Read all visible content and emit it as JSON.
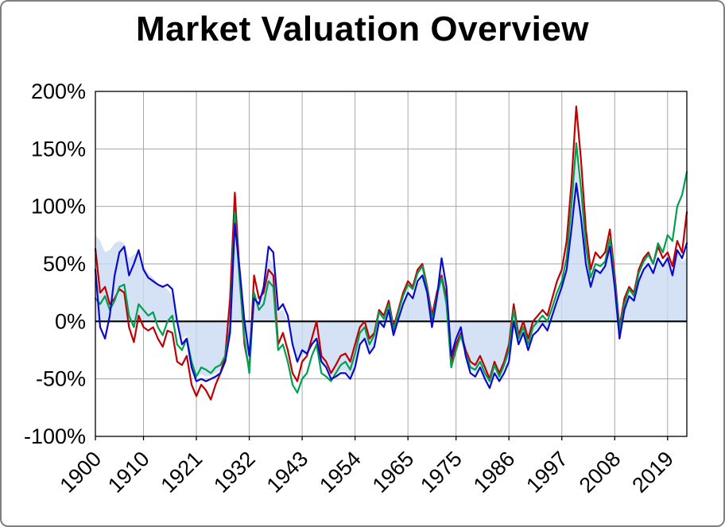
{
  "title": "Market Valuation Overview",
  "chart_data": {
    "type": "line",
    "title": "Market Valuation Overview",
    "xlabel": "",
    "ylabel": "",
    "legend": "none",
    "grid": true,
    "xlim": [
      1900,
      2023
    ],
    "ylim": [
      -100,
      200
    ],
    "x_ticks": [
      1900,
      1910,
      1921,
      1932,
      1943,
      1954,
      1965,
      1975,
      1986,
      1997,
      2008,
      2019
    ],
    "x_tick_labels": [
      "1900",
      "1910",
      "1921",
      "1932",
      "1943",
      "1954",
      "1965",
      "1975",
      "1986",
      "1997",
      "2008",
      "2019"
    ],
    "y_ticks": [
      -100,
      -50,
      0,
      50,
      100,
      150,
      200
    ],
    "y_tick_labels": [
      "-100%",
      "-50%",
      "0%",
      "50%",
      "100%",
      "150%",
      "200%"
    ],
    "colors": {
      "red": "#c00000",
      "green": "#00a050",
      "blue": "#0a0ac8",
      "band_fill": "#cbd9f2",
      "grid": "#a6a6a6",
      "axis": "#000000"
    },
    "x_start": 1900,
    "x_step": 1,
    "band": {
      "name": "shaded-band",
      "values": [
        75,
        70,
        60,
        62,
        68,
        70,
        68,
        55,
        58,
        60,
        48,
        42,
        38,
        33,
        30,
        28,
        22,
        0,
        -15,
        -12,
        -35,
        -48,
        -46,
        -48,
        -47,
        -45,
        -43,
        -33,
        -8,
        80,
        42,
        0,
        -32,
        18,
        14,
        28,
        55,
        50,
        8,
        10,
        0,
        -22,
        -38,
        -28,
        -30,
        -22,
        -15,
        -35,
        -40,
        -48,
        -46,
        -43,
        -43,
        -48,
        -38,
        -18,
        -14,
        -26,
        -20,
        0,
        -5,
        8,
        -12,
        0,
        13,
        23,
        18,
        32,
        38,
        22,
        -6,
        18,
        45,
        25,
        -32,
        -18,
        -8,
        -28,
        -42,
        -45,
        -38,
        -48,
        -55,
        -42,
        -50,
        -42,
        -32,
        -2,
        -18,
        -8,
        -24,
        -10,
        -6,
        0,
        -6,
        6,
        20,
        32,
        48,
        85,
        150,
        95,
        52,
        32,
        46,
        44,
        50,
        68,
        32,
        -12,
        12,
        24,
        20,
        36,
        46,
        52,
        44,
        56,
        50,
        55,
        42,
        60,
        52,
        55
      ]
    },
    "series": [
      {
        "name": "red-series",
        "color_key": "red",
        "values": [
          63,
          25,
          30,
          15,
          20,
          28,
          25,
          -5,
          -18,
          5,
          -5,
          -8,
          -5,
          -15,
          -22,
          -8,
          -10,
          -35,
          -38,
          -30,
          -55,
          -65,
          -55,
          -60,
          -68,
          -55,
          -45,
          -30,
          20,
          112,
          40,
          -20,
          -42,
          40,
          20,
          25,
          45,
          40,
          -20,
          -10,
          -25,
          -45,
          -52,
          -35,
          -30,
          -15,
          0,
          -30,
          -35,
          -45,
          -38,
          -30,
          -28,
          -35,
          -20,
          -5,
          0,
          -15,
          -10,
          10,
          5,
          18,
          -5,
          10,
          25,
          35,
          30,
          45,
          50,
          30,
          5,
          25,
          40,
          20,
          -35,
          -20,
          -10,
          -25,
          -35,
          -38,
          -30,
          -40,
          -50,
          -35,
          -45,
          -35,
          -20,
          15,
          -12,
          0,
          -15,
          0,
          5,
          10,
          5,
          20,
          35,
          45,
          70,
          120,
          187,
          140,
          80,
          45,
          60,
          55,
          60,
          80,
          40,
          -5,
          20,
          30,
          25,
          45,
          55,
          60,
          50,
          65,
          55,
          60,
          48,
          70,
          60,
          95
        ]
      },
      {
        "name": "green-series",
        "color_key": "green",
        "values": [
          20,
          15,
          22,
          10,
          18,
          30,
          32,
          5,
          -5,
          15,
          10,
          5,
          8,
          -5,
          -12,
          0,
          5,
          -20,
          -25,
          -15,
          -35,
          -48,
          -40,
          -42,
          -45,
          -40,
          -38,
          -30,
          -5,
          95,
          35,
          -15,
          -45,
          25,
          10,
          15,
          35,
          30,
          -25,
          -20,
          -35,
          -55,
          -62,
          -50,
          -45,
          -30,
          -20,
          -45,
          -48,
          -52,
          -45,
          -38,
          -35,
          -42,
          -28,
          -10,
          -5,
          -20,
          -12,
          8,
          2,
          15,
          -8,
          8,
          22,
          32,
          28,
          42,
          48,
          28,
          0,
          22,
          38,
          15,
          -40,
          -25,
          -12,
          -28,
          -40,
          -42,
          -35,
          -45,
          -52,
          -38,
          -48,
          -38,
          -25,
          10,
          -15,
          -5,
          -20,
          -5,
          0,
          5,
          0,
          12,
          25,
          35,
          55,
          100,
          155,
          115,
          65,
          38,
          50,
          48,
          52,
          72,
          35,
          -8,
          15,
          28,
          22,
          42,
          52,
          58,
          50,
          68,
          60,
          75,
          70,
          100,
          110,
          130
        ]
      },
      {
        "name": "blue-series",
        "color_key": "blue",
        "values": [
          45,
          -5,
          -15,
          5,
          40,
          60,
          65,
          40,
          50,
          62,
          45,
          38,
          35,
          32,
          30,
          32,
          28,
          0,
          -20,
          -15,
          -40,
          -52,
          -50,
          -52,
          -50,
          -48,
          -45,
          -35,
          -10,
          85,
          45,
          0,
          -30,
          20,
          15,
          30,
          65,
          60,
          10,
          15,
          5,
          -20,
          -35,
          -25,
          -28,
          -20,
          -15,
          -35,
          -40,
          -50,
          -48,
          -45,
          -45,
          -50,
          -40,
          -20,
          -15,
          -28,
          -22,
          0,
          -5,
          10,
          -12,
          2,
          15,
          25,
          20,
          35,
          40,
          25,
          -5,
          20,
          55,
          30,
          -30,
          -15,
          -5,
          -30,
          -45,
          -48,
          -40,
          -50,
          -58,
          -45,
          -52,
          -45,
          -35,
          0,
          -20,
          -10,
          -25,
          -12,
          -8,
          -2,
          -8,
          5,
          18,
          30,
          45,
          80,
          120,
          90,
          50,
          30,
          45,
          42,
          48,
          65,
          30,
          -15,
          10,
          22,
          18,
          35,
          45,
          50,
          42,
          55,
          48,
          55,
          40,
          62,
          55,
          68
        ]
      }
    ]
  }
}
